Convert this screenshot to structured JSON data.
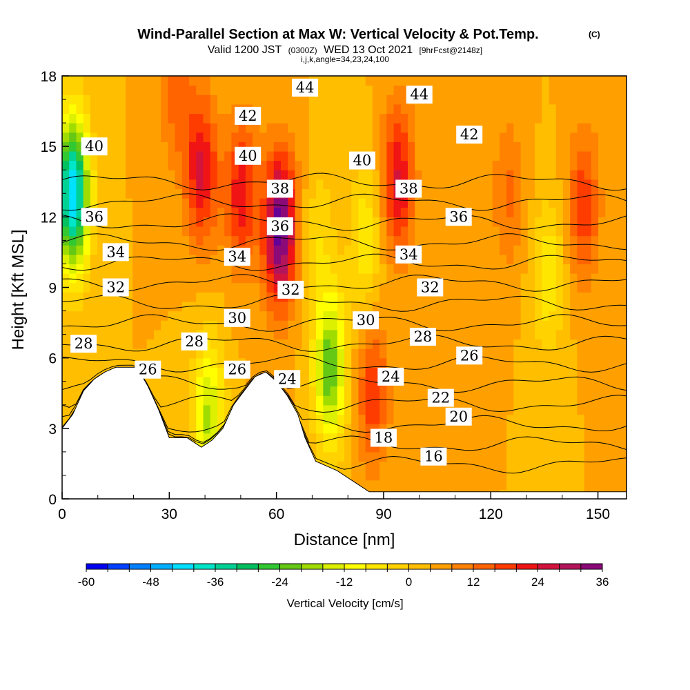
{
  "header": {
    "title_main": "Wind-Parallel Section at Max W: Vertical Velocity & Pot.Temp.",
    "title_mark": "(C)",
    "valid_prefix": "Valid 1200 JST",
    "valid_utc": "(0300Z)",
    "valid_date": "WED 13 Oct 2021",
    "valid_fcst": "[9hrFcst@2148z]",
    "indices": "i,j,k,angle=34,23,24,100"
  },
  "colors": {
    "scale": [
      "#0000f0",
      "#0040ff",
      "#0080ff",
      "#00b0ff",
      "#00e0ff",
      "#00e6c8",
      "#00d296",
      "#00c060",
      "#32c832",
      "#64c814",
      "#a0dc00",
      "#dcf000",
      "#ffff00",
      "#ffe600",
      "#ffd200",
      "#ffbe00",
      "#ffa000",
      "#ff8200",
      "#ff6400",
      "#ff3c00",
      "#f01414",
      "#d2143c",
      "#b4145a",
      "#8c0a78",
      "#640096"
    ]
  },
  "chart_data": {
    "type": "heatmap",
    "xlabel": "Distance [nm]",
    "ylabel": "Height [Kft MSL]",
    "xlim": [
      0,
      158
    ],
    "ylim": [
      0,
      18
    ],
    "xticks": [
      0,
      30,
      60,
      90,
      120,
      150
    ],
    "yticks": [
      0,
      3,
      6,
      9,
      12,
      15,
      18
    ],
    "colorbar": {
      "label": "Vertical Velocity [cm/s]",
      "min": -60,
      "max": 36,
      "step": 4,
      "ticks": [
        -60,
        -48,
        -36,
        -24,
        -12,
        0,
        12,
        24,
        36
      ]
    },
    "background_w": 4,
    "updraft_cores": [
      {
        "x": 39,
        "y": 14,
        "w": 22
      },
      {
        "x": 50,
        "y": 13,
        "w": 20
      },
      {
        "x": 61,
        "y": 11.5,
        "w": 36
      },
      {
        "x": 94,
        "y": 13.5,
        "w": 22
      },
      {
        "x": 87,
        "y": 4.5,
        "w": 16
      },
      {
        "x": 146,
        "y": 12.5,
        "w": 16
      },
      {
        "x": 125,
        "y": 13,
        "w": 10
      },
      {
        "x": 32,
        "y": 17.5,
        "w": 12
      }
    ],
    "downdraft_cores": [
      {
        "x": 3,
        "y": 13,
        "w": -46
      },
      {
        "x": 75,
        "y": 5.5,
        "w": -26
      },
      {
        "x": 41,
        "y": 3.5,
        "w": -20
      },
      {
        "x": 85,
        "y": 11,
        "w": -10
      },
      {
        "x": 136,
        "y": 9.5,
        "w": -10
      },
      {
        "x": 72,
        "y": 11,
        "w": -6
      }
    ],
    "terrain": [
      {
        "x": 0,
        "h": 3.0
      },
      {
        "x": 3,
        "h": 3.6
      },
      {
        "x": 6,
        "h": 4.6
      },
      {
        "x": 9,
        "h": 5.1
      },
      {
        "x": 12,
        "h": 5.4
      },
      {
        "x": 15,
        "h": 5.6
      },
      {
        "x": 21,
        "h": 5.6
      },
      {
        "x": 24,
        "h": 4.8
      },
      {
        "x": 27,
        "h": 3.8
      },
      {
        "x": 30,
        "h": 2.6
      },
      {
        "x": 35,
        "h": 2.6
      },
      {
        "x": 39,
        "h": 2.2
      },
      {
        "x": 42,
        "h": 2.5
      },
      {
        "x": 45,
        "h": 3.0
      },
      {
        "x": 48,
        "h": 4.0
      },
      {
        "x": 51,
        "h": 4.6
      },
      {
        "x": 54,
        "h": 5.2
      },
      {
        "x": 57,
        "h": 5.4
      },
      {
        "x": 60,
        "h": 5.0
      },
      {
        "x": 63,
        "h": 4.4
      },
      {
        "x": 66,
        "h": 3.6
      },
      {
        "x": 68,
        "h": 2.6
      },
      {
        "x": 71,
        "h": 1.6
      },
      {
        "x": 74,
        "h": 1.4
      },
      {
        "x": 77,
        "h": 1.2
      },
      {
        "x": 80,
        "h": 0.9
      },
      {
        "x": 83,
        "h": 0.6
      },
      {
        "x": 86,
        "h": 0.3
      },
      {
        "x": 90,
        "h": 0.3
      },
      {
        "x": 158,
        "h": 0.3
      }
    ],
    "isentropes": [
      16,
      18,
      20,
      22,
      24,
      26,
      28,
      30,
      32,
      34,
      36,
      38,
      40,
      42,
      44
    ],
    "contour_labels": [
      {
        "text": "44",
        "x": 68,
        "y": 17.5
      },
      {
        "text": "44",
        "x": 100,
        "y": 17.2
      },
      {
        "text": "42",
        "x": 52,
        "y": 16.3
      },
      {
        "text": "42",
        "x": 114,
        "y": 15.5
      },
      {
        "text": "40",
        "x": 9,
        "y": 15.0
      },
      {
        "text": "40",
        "x": 52,
        "y": 14.6
      },
      {
        "text": "40",
        "x": 84,
        "y": 14.4
      },
      {
        "text": "38",
        "x": 61,
        "y": 13.2
      },
      {
        "text": "38",
        "x": 97,
        "y": 13.2
      },
      {
        "text": "36",
        "x": 9,
        "y": 12.0
      },
      {
        "text": "36",
        "x": 61,
        "y": 11.6
      },
      {
        "text": "36",
        "x": 111,
        "y": 12.0
      },
      {
        "text": "34",
        "x": 15,
        "y": 10.5
      },
      {
        "text": "34",
        "x": 49,
        "y": 10.3
      },
      {
        "text": "34",
        "x": 97,
        "y": 10.4
      },
      {
        "text": "32",
        "x": 15,
        "y": 9.0
      },
      {
        "text": "32",
        "x": 64,
        "y": 8.9
      },
      {
        "text": "32",
        "x": 103,
        "y": 9.0
      },
      {
        "text": "30",
        "x": 49,
        "y": 7.7
      },
      {
        "text": "30",
        "x": 85,
        "y": 7.6
      },
      {
        "text": "28",
        "x": 6,
        "y": 6.6
      },
      {
        "text": "28",
        "x": 37,
        "y": 6.7
      },
      {
        "text": "28",
        "x": 101,
        "y": 6.9
      },
      {
        "text": "26",
        "x": 24,
        "y": 5.5
      },
      {
        "text": "26",
        "x": 49,
        "y": 5.5
      },
      {
        "text": "26",
        "x": 114,
        "y": 6.1
      },
      {
        "text": "24",
        "x": 63,
        "y": 5.1
      },
      {
        "text": "24",
        "x": 92,
        "y": 5.2
      },
      {
        "text": "22",
        "x": 106,
        "y": 4.3
      },
      {
        "text": "20",
        "x": 111,
        "y": 3.5
      },
      {
        "text": "18",
        "x": 90,
        "y": 2.6
      },
      {
        "text": "16",
        "x": 104,
        "y": 1.8
      }
    ]
  }
}
